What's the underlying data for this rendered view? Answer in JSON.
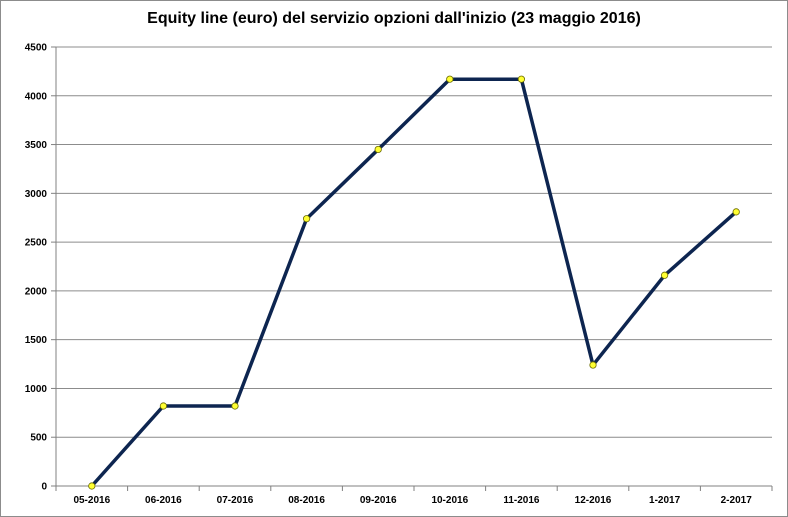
{
  "chart_data": {
    "type": "line",
    "title": "Equity line (euro) del servizio opzioni dall'inizio (23 maggio 2016)",
    "xlabel": "",
    "ylabel": "",
    "categories": [
      "05-2016",
      "06-2016",
      "07-2016",
      "08-2016",
      "09-2016",
      "10-2016",
      "11-2016",
      "12-2016",
      "1-2017",
      "2-2017"
    ],
    "series": [
      {
        "values": [
          0,
          820,
          820,
          2740,
          3450,
          4170,
          4170,
          1240,
          2160,
          2810
        ]
      }
    ],
    "ylim": [
      0,
      4500
    ],
    "yticks": [
      "0",
      "500",
      "1000",
      "1500",
      "2000",
      "2500",
      "3000",
      "3500",
      "4000",
      "4500"
    ],
    "grid": true,
    "legend": "none",
    "colors": {
      "line": "#0d2550",
      "marker": "#ffff33",
      "marker_edge": "#6b6b00",
      "grid": "#8c8c8c"
    }
  }
}
